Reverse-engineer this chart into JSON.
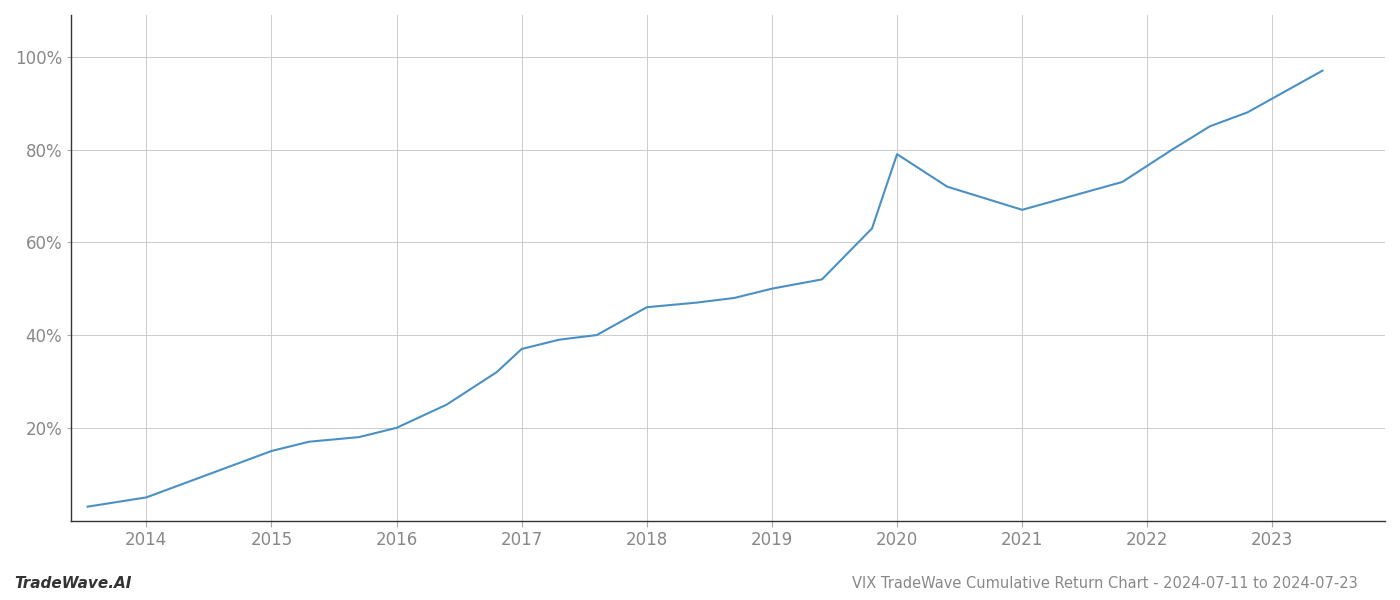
{
  "title": "VIX TradeWave Cumulative Return Chart - 2024-07-11 to 2024-07-23",
  "watermark": "TradeWave.AI",
  "line_color": "#4a90c4",
  "background_color": "#ffffff",
  "grid_color": "#cccccc",
  "x_values": [
    2013.53,
    2014.0,
    2014.3,
    2014.6,
    2015.0,
    2015.3,
    2015.7,
    2016.0,
    2016.4,
    2016.8,
    2017.0,
    2017.3,
    2017.6,
    2018.0,
    2018.4,
    2018.7,
    2019.0,
    2019.4,
    2019.8,
    2020.0,
    2020.4,
    2021.0,
    2021.4,
    2021.8,
    2022.2,
    2022.5,
    2022.8,
    2023.0,
    2023.4
  ],
  "y_values": [
    0.03,
    0.05,
    0.08,
    0.11,
    0.15,
    0.17,
    0.18,
    0.2,
    0.25,
    0.32,
    0.37,
    0.39,
    0.4,
    0.46,
    0.47,
    0.48,
    0.5,
    0.52,
    0.63,
    0.79,
    0.72,
    0.67,
    0.7,
    0.73,
    0.8,
    0.85,
    0.88,
    0.91,
    0.97
  ],
  "xlim": [
    2013.4,
    2023.9
  ],
  "ylim": [
    0.0,
    1.09
  ],
  "yticks": [
    0.2,
    0.4,
    0.6,
    0.8,
    1.0
  ],
  "ytick_labels": [
    "20%",
    "40%",
    "60%",
    "80%",
    "100%"
  ],
  "xticks": [
    2014,
    2015,
    2016,
    2017,
    2018,
    2019,
    2020,
    2021,
    2022,
    2023
  ],
  "xtick_labels": [
    "2014",
    "2015",
    "2016",
    "2017",
    "2018",
    "2019",
    "2020",
    "2021",
    "2022",
    "2023"
  ],
  "line_width": 1.5,
  "title_fontsize": 10.5,
  "tick_fontsize": 12,
  "watermark_fontsize": 11
}
